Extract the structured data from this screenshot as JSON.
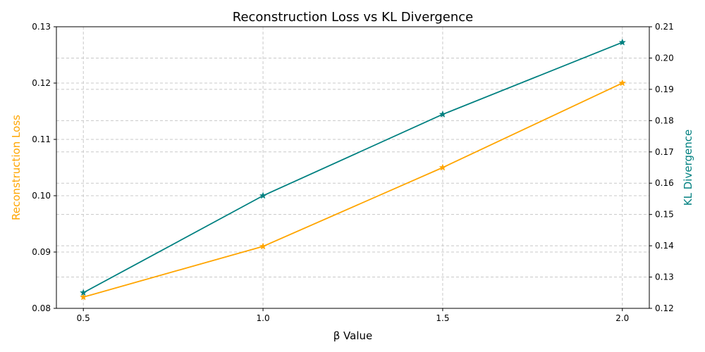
{
  "chart_data": {
    "type": "line",
    "title": "Reconstruction Loss vs KL Divergence",
    "xlabel": "β Value",
    "ylabel_left": "Reconstruction Loss",
    "ylabel_right": "KL Divergence",
    "x": [
      0.5,
      1.0,
      1.5,
      2.0
    ],
    "x_ticks": [
      "0.5",
      "1.0",
      "1.5",
      "2.0"
    ],
    "y_left_ticks": [
      "0.08",
      "0.09",
      "0.10",
      "0.11",
      "0.12",
      "0.13"
    ],
    "y_right_ticks": [
      "0.12",
      "0.13",
      "0.14",
      "0.15",
      "0.16",
      "0.17",
      "0.18",
      "0.19",
      "0.20",
      "0.21"
    ],
    "ylim_left": [
      0.08,
      0.13
    ],
    "ylim_right": [
      0.12,
      0.21
    ],
    "xlim": [
      0.425,
      2.075
    ],
    "grid": true,
    "legend": "none",
    "series": [
      {
        "values": [
          0.082,
          0.091,
          0.105,
          0.12
        ],
        "axis": "left",
        "color": "#ffa500",
        "marker": "star"
      },
      {
        "values": [
          0.125,
          0.156,
          0.182,
          0.205
        ],
        "axis": "right",
        "color": "#008080",
        "marker": "star"
      }
    ],
    "colors": {
      "left_axis_label": "#ffa500",
      "right_axis_label": "#008080",
      "grid": "#c8c8c8"
    }
  }
}
